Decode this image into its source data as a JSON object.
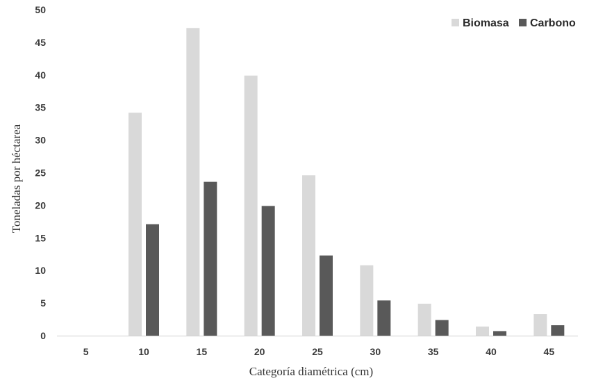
{
  "chart_data": {
    "type": "bar",
    "title": "",
    "xlabel": "Categoría diamétrica (cm)",
    "ylabel": "Toneladas por héctarea",
    "categories": [
      "5",
      "10",
      "15",
      "20",
      "25",
      "30",
      "35",
      "40",
      "45"
    ],
    "series": [
      {
        "name": "Biomasa",
        "color": "#d9d9d9",
        "values": [
          0,
          34.2,
          47.2,
          39.9,
          24.6,
          10.8,
          4.9,
          1.4,
          3.3
        ]
      },
      {
        "name": "Carbono",
        "color": "#595959",
        "values": [
          0,
          17.1,
          23.6,
          19.9,
          12.3,
          5.4,
          2.4,
          0.7,
          1.6
        ]
      }
    ],
    "ylim": [
      0,
      50
    ],
    "yticks": [
      "0",
      "5",
      "10",
      "15",
      "20",
      "25",
      "30",
      "35",
      "40",
      "45",
      "50"
    ],
    "grid": false,
    "legend_position": "top-right"
  }
}
